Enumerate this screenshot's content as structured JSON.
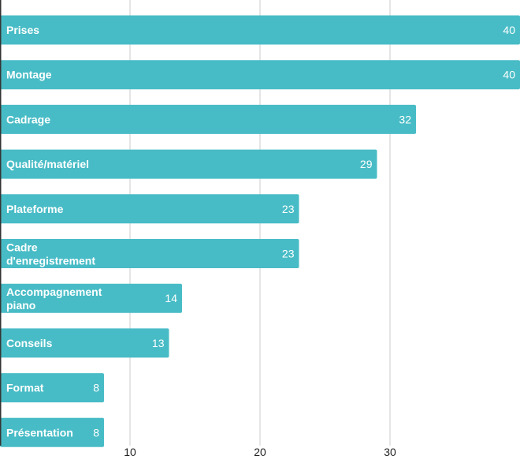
{
  "chart_data": {
    "type": "bar",
    "orientation": "horizontal",
    "categories": [
      "Prises",
      "Montage",
      "Cadrage",
      "Qualité/matériel",
      "Plateforme",
      "Cadre d'enregistrement",
      "Accompagnement piano",
      "Conseils",
      "Format",
      "Présentation"
    ],
    "values": [
      40,
      40,
      32,
      29,
      23,
      23,
      14,
      13,
      8,
      8
    ],
    "xlim": [
      0,
      40
    ],
    "xticks": [
      10,
      20,
      30
    ],
    "title": "",
    "xlabel": "",
    "ylabel": "",
    "grid": true,
    "bar_color": "#48bcc6",
    "grid_color": "#cccccc",
    "axis_color": "#333333"
  }
}
